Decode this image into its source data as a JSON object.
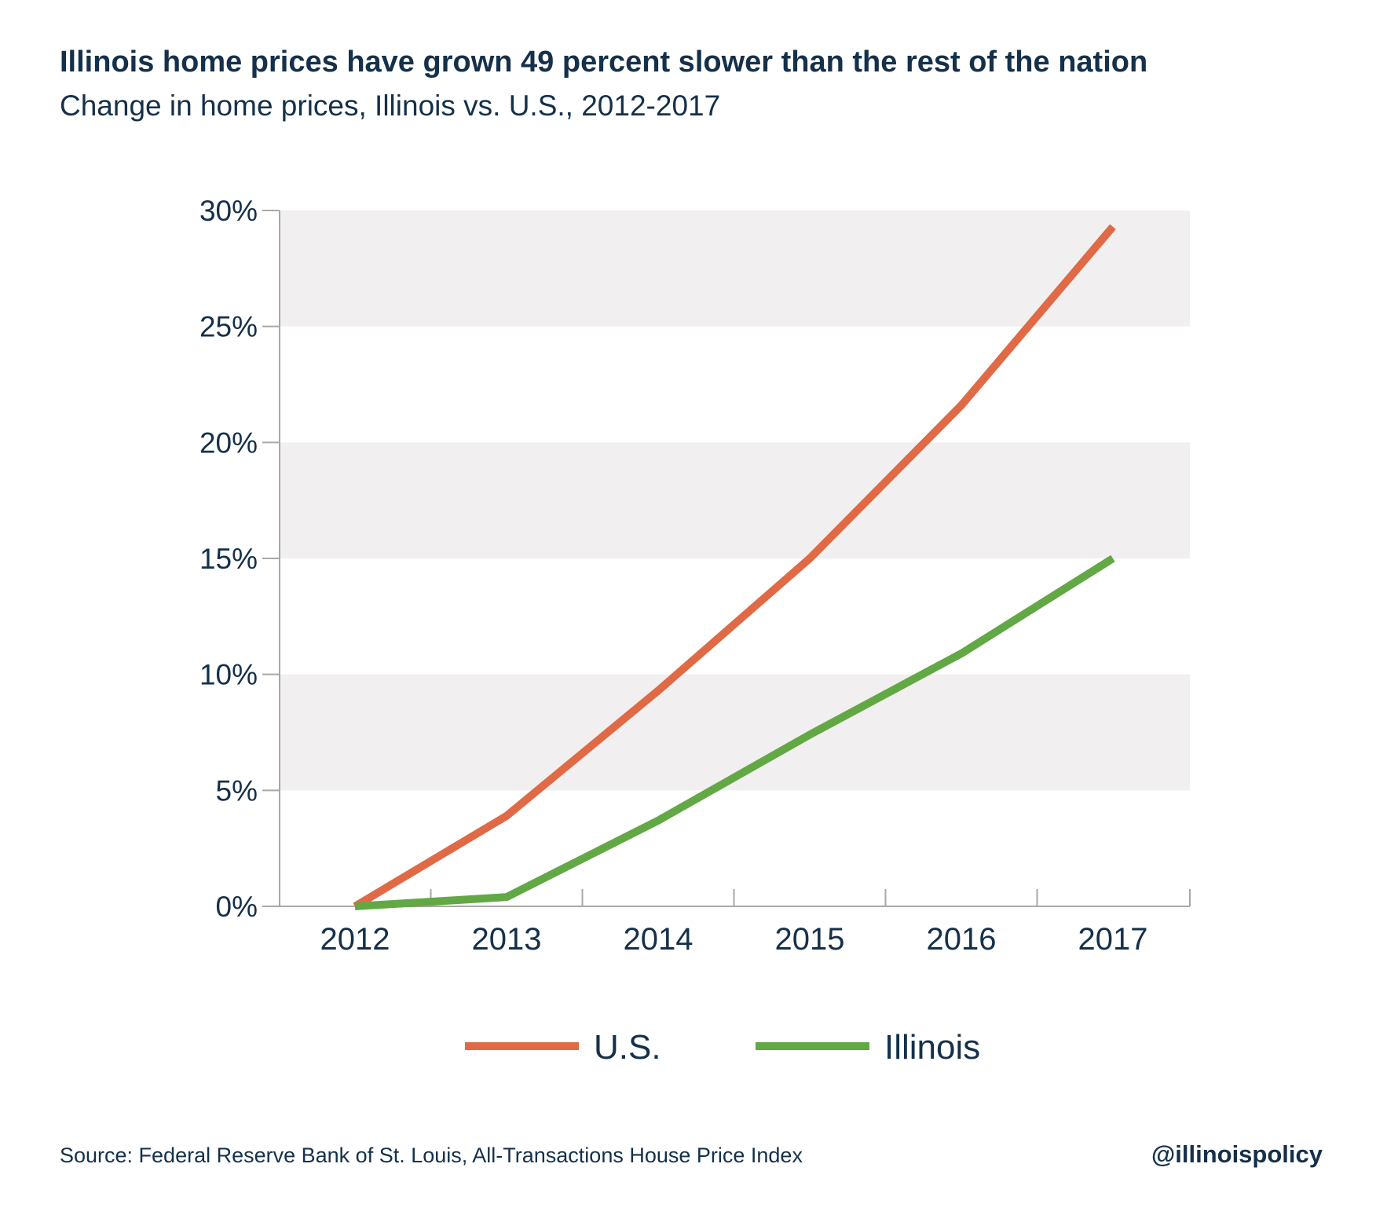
{
  "chart_data": {
    "type": "line",
    "title": "Illinois home prices have grown 49 percent slower than the rest of the nation",
    "subtitle": "Change in home prices, Illinois vs. U.S., 2012-2017",
    "categories": [
      "2012",
      "2013",
      "2014",
      "2015",
      "2016",
      "2017"
    ],
    "series": [
      {
        "name": "U.S.",
        "color": "#df6a45",
        "values": [
          0,
          3.9,
          9.3,
          15.0,
          21.6,
          29.3
        ]
      },
      {
        "name": "Illinois",
        "color": "#62a844",
        "values": [
          0,
          0.4,
          3.7,
          7.4,
          10.9,
          15.0
        ]
      }
    ],
    "yticks": [
      "0%",
      "5%",
      "10%",
      "15%",
      "20%",
      "25%",
      "30%"
    ],
    "ylim": [
      0,
      30
    ],
    "grid_band_color": "#f1eff0",
    "legend_position": "bottom-center",
    "xlabel": "",
    "ylabel": ""
  },
  "footer": {
    "source": "Source: Federal Reserve Bank of St. Louis, All-Transactions House Price Index",
    "handle": "@illinoispolicy"
  }
}
